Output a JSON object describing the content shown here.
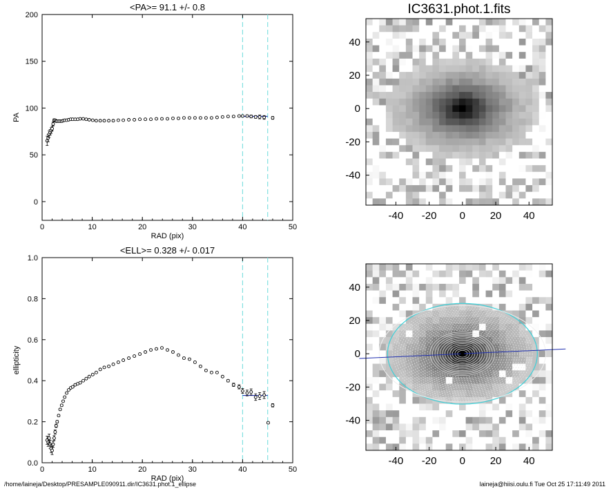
{
  "footer": {
    "path": "/home/laineja/Desktop/PRESAMPLE090911.dir/IC3631.phot.1_ellipse",
    "user_stamp": "laineja@hiisi.oulu.fi  Tue Oct 25 17:11:49 2011"
  },
  "colors": {
    "guide_line": "#7fe0e0",
    "fit_line": "#1f2fb0",
    "contour": "#e8e8e8",
    "outer_ellipse": "#3cd0d8",
    "major_axis": "#1f2fb0"
  },
  "chart_data": [
    {
      "type": "scatter",
      "title": "<PA>=  91.1 +/-   0.8",
      "xlabel": "RAD (pix)",
      "ylabel": "PA",
      "xlim": [
        0,
        50
      ],
      "ylim": [
        -20,
        200
      ],
      "xticks": [
        0,
        10,
        20,
        30,
        40,
        50
      ],
      "yticks": [
        0,
        50,
        100,
        150,
        200
      ],
      "guide_lines_x": [
        40,
        45
      ],
      "fit_line": {
        "x": [
          40,
          45
        ],
        "y": 91.1
      },
      "x": [
        1.0,
        1.2,
        1.4,
        1.6,
        1.8,
        2.0,
        2.2,
        2.4,
        2.6,
        2.8,
        3.0,
        3.3,
        3.6,
        3.9,
        4.2,
        4.5,
        4.9,
        5.3,
        5.7,
        6.1,
        6.6,
        7.1,
        7.6,
        8.2,
        8.8,
        9.4,
        10.1,
        10.8,
        11.6,
        12.4,
        13.3,
        14.2,
        15.2,
        16.2,
        17.3,
        18.4,
        19.5,
        20.6,
        21.7,
        22.8,
        23.9,
        25.0,
        26.1,
        27.2,
        28.3,
        29.4,
        30.5,
        31.6,
        32.7,
        33.8,
        34.9,
        36.0,
        37.1,
        38.2,
        39.3,
        40.0,
        40.9,
        41.7,
        42.6,
        43.4,
        44.3,
        46.0
      ],
      "values": [
        65,
        68,
        72,
        74,
        76,
        78,
        83,
        87,
        87,
        86,
        86,
        86,
        86,
        86,
        86.5,
        87,
        87,
        87.5,
        88,
        88,
        88,
        88,
        88.5,
        88.5,
        88,
        87.5,
        87,
        86.5,
        86.5,
        86.5,
        86.5,
        86.5,
        87,
        87,
        87.5,
        87.5,
        88,
        88,
        88,
        88.5,
        88.5,
        88.5,
        89,
        89,
        89.5,
        89.5,
        89.5,
        89.5,
        89.5,
        89.5,
        90,
        90.5,
        91,
        91,
        91.5,
        91.5,
        91.5,
        91,
        90.5,
        90.5,
        90,
        89.5
      ],
      "errors": [
        5,
        4,
        3.5,
        3,
        3,
        2.5,
        2,
        1.5,
        1.2,
        1,
        1,
        1,
        1,
        1,
        0.8,
        0.8,
        0.8,
        0.8,
        0.8,
        0.8,
        0.8,
        0.8,
        0.8,
        0.8,
        0.8,
        0.8,
        0.8,
        0.8,
        0.8,
        0.8,
        0.8,
        0.8,
        0.8,
        0.8,
        0.8,
        0.8,
        0.8,
        0.8,
        0.8,
        0.8,
        0.8,
        0.8,
        0.8,
        0.8,
        0.8,
        0.8,
        0.8,
        0.8,
        0.8,
        0.8,
        0.8,
        0.8,
        0.8,
        0.8,
        0.8,
        1,
        1.2,
        1.5,
        1.5,
        2,
        2,
        1.5
      ]
    },
    {
      "type": "heatmap",
      "title": "IC3631.phot.1.fits",
      "xlim": [
        -58,
        54
      ],
      "ylim": [
        -58,
        54
      ],
      "xticks": [
        -40,
        -20,
        0,
        20,
        40
      ],
      "yticks": [
        -40,
        -20,
        0,
        20,
        40
      ],
      "colormap": "gray-inverted"
    },
    {
      "type": "scatter",
      "title": "<ELL>= 0.328 +/-  0.017",
      "xlabel": "RAD (pix)",
      "ylabel": "ellipticity",
      "xlim": [
        0,
        50
      ],
      "ylim": [
        0.0,
        1.0
      ],
      "xticks": [
        0,
        10,
        20,
        30,
        40,
        50
      ],
      "yticks": [
        0.0,
        0.2,
        0.4,
        0.6,
        0.8,
        1.0
      ],
      "guide_lines_x": [
        40,
        45
      ],
      "fit_line": {
        "x": [
          40,
          45
        ],
        "y": 0.328
      },
      "x": [
        1.0,
        1.2,
        1.4,
        1.6,
        1.8,
        2.0,
        2.2,
        2.4,
        2.6,
        2.8,
        3.0,
        3.3,
        3.6,
        3.9,
        4.2,
        4.5,
        4.9,
        5.3,
        5.7,
        6.1,
        6.6,
        7.1,
        7.6,
        8.2,
        8.8,
        9.4,
        10.1,
        10.8,
        11.6,
        12.4,
        13.3,
        14.2,
        15.2,
        16.2,
        17.3,
        18.4,
        19.5,
        20.6,
        21.7,
        22.8,
        23.9,
        25.0,
        26.1,
        27.2,
        28.3,
        29.4,
        30.5,
        31.6,
        32.7,
        33.8,
        34.9,
        36.0,
        37.1,
        38.2,
        39.3,
        40.0,
        40.9,
        41.7,
        42.6,
        43.4,
        44.3,
        45.1,
        46.0
      ],
      "values": [
        0.11,
        0.1,
        0.12,
        0.09,
        0.07,
        0.06,
        0.09,
        0.12,
        0.15,
        0.18,
        0.2,
        0.23,
        0.26,
        0.28,
        0.3,
        0.32,
        0.34,
        0.355,
        0.365,
        0.37,
        0.38,
        0.385,
        0.39,
        0.4,
        0.41,
        0.42,
        0.43,
        0.44,
        0.455,
        0.465,
        0.47,
        0.48,
        0.49,
        0.5,
        0.51,
        0.52,
        0.53,
        0.54,
        0.55,
        0.555,
        0.56,
        0.55,
        0.54,
        0.525,
        0.51,
        0.505,
        0.49,
        0.47,
        0.45,
        0.44,
        0.44,
        0.42,
        0.4,
        0.38,
        0.37,
        0.35,
        0.34,
        0.345,
        0.32,
        0.325,
        0.33,
        0.195,
        0.28
      ],
      "errors": [
        0.02,
        0.02,
        0.02,
        0.02,
        0.02,
        0.02,
        0.015,
        0.012,
        0.01,
        0.008,
        0.006,
        0.005,
        0.005,
        0.005,
        0.004,
        0.004,
        0.004,
        0.004,
        0.004,
        0.004,
        0.004,
        0.004,
        0.004,
        0.004,
        0.004,
        0.004,
        0.004,
        0.004,
        0.004,
        0.004,
        0.004,
        0.004,
        0.004,
        0.004,
        0.004,
        0.004,
        0.004,
        0.004,
        0.004,
        0.004,
        0.004,
        0.004,
        0.004,
        0.004,
        0.004,
        0.004,
        0.004,
        0.004,
        0.004,
        0.004,
        0.004,
        0.004,
        0.006,
        0.008,
        0.01,
        0.012,
        0.014,
        0.015,
        0.016,
        0.017,
        0.017,
        0.005,
        0.008
      ]
    },
    {
      "type": "heatmap",
      "title": "",
      "xlim": [
        -58,
        54
      ],
      "ylim": [
        -58,
        54
      ],
      "xticks": [
        -40,
        -20,
        0,
        20,
        40
      ],
      "yticks": [
        -40,
        -20,
        0,
        20,
        40
      ],
      "colormap": "gray-inverted",
      "overlay": "isophote ellipses",
      "outer_ellipse": {
        "semi_major": 45,
        "ellipticity": 0.328
      },
      "major_axis_pa": 91.1
    }
  ]
}
